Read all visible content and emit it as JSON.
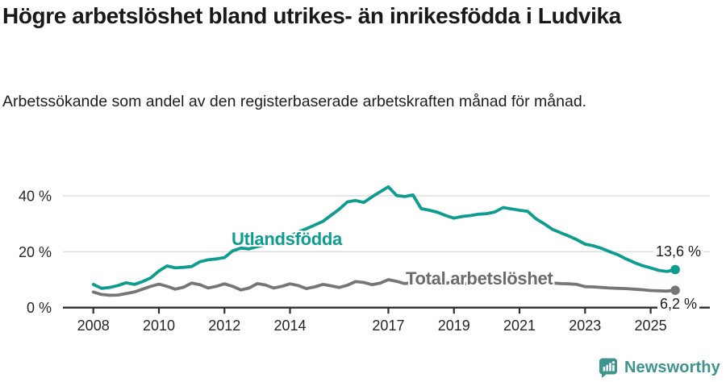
{
  "header": {
    "title": "Högre arbetslöshet bland utrikes- än inrikesfödda i Ludvika",
    "subtitle": "Arbetssökande som andel av den registerbaserade arbetskraften månad för månad."
  },
  "chart_data": {
    "type": "line",
    "title": "Högre arbetslöshet bland utrikes- än inrikesfödda i Ludvika",
    "xlabel": "",
    "ylabel": "Arbetssökande som andel av den registerbaserade arbetskraften (%)",
    "x_start": 2008.0,
    "x_step": 0.25,
    "xlim": [
      2007.8,
      2026.4
    ],
    "ylim": [
      0,
      46
    ],
    "grid": "horizontal",
    "y_ticks": [
      {
        "label": "0 %",
        "value": 0
      },
      {
        "label": "20 %",
        "value": 20
      },
      {
        "label": "40 %",
        "value": 40
      }
    ],
    "x_ticks": [
      {
        "label": "2008",
        "year": 2008
      },
      {
        "label": "2010",
        "year": 2010
      },
      {
        "label": "2012",
        "year": 2012
      },
      {
        "label": "2014",
        "year": 2014
      },
      {
        "label": "2017",
        "year": 2017
      },
      {
        "label": "2019",
        "year": 2019
      },
      {
        "label": "2021",
        "year": 2021
      },
      {
        "label": "2023",
        "year": 2023
      },
      {
        "label": "2025",
        "year": 2025
      }
    ],
    "series": [
      {
        "name": "Utlandsfödda",
        "color": "#0d9c8d",
        "end_label": "13,6 %",
        "end_value": 13.6,
        "values": [
          8.3,
          6.9,
          7.2,
          7.9,
          8.9,
          8.3,
          9.3,
          10.6,
          13.1,
          14.9,
          14.2,
          14.4,
          14.7,
          16.4,
          17.1,
          17.4,
          17.9,
          20.3,
          21.3,
          21.0,
          21.8,
          22.5,
          23.2,
          24.3,
          25.5,
          27.0,
          28.2,
          29.5,
          30.8,
          33.0,
          35.2,
          37.8,
          38.3,
          37.6,
          39.6,
          41.4,
          43.2,
          40.1,
          39.7,
          40.3,
          35.4,
          34.8,
          34.1,
          32.9,
          32.0,
          32.6,
          32.9,
          33.4,
          33.6,
          34.2,
          35.8,
          35.3,
          34.8,
          34.4,
          31.8,
          30.0,
          28.0,
          26.8,
          25.6,
          24.3,
          22.7,
          22.1,
          21.2,
          20.0,
          18.9,
          17.4,
          16.1,
          15.0,
          14.2,
          13.3,
          12.9,
          13.6
        ]
      },
      {
        "name": "Total arbetslöshet",
        "color": "#767676",
        "end_label": "6,2 %",
        "end_value": 6.2,
        "values": [
          5.6,
          4.7,
          4.4,
          4.5,
          5.0,
          5.6,
          6.6,
          7.6,
          8.4,
          7.6,
          6.6,
          7.3,
          8.8,
          8.2,
          7.0,
          7.6,
          8.5,
          7.6,
          6.3,
          7.0,
          8.6,
          8.1,
          7.0,
          7.6,
          8.5,
          7.9,
          6.8,
          7.4,
          8.3,
          7.8,
          7.2,
          8.0,
          9.3,
          9.0,
          8.2,
          8.8,
          10.0,
          9.4,
          8.6,
          9.0,
          9.5,
          9.0,
          8.3,
          8.7,
          9.2,
          8.8,
          8.4,
          8.8,
          9.3,
          9.6,
          9.8,
          9.5,
          9.4,
          9.2,
          8.9,
          8.8,
          8.8,
          8.6,
          8.5,
          8.3,
          7.5,
          7.4,
          7.2,
          7.0,
          6.9,
          6.8,
          6.6,
          6.4,
          6.1,
          6.0,
          5.9,
          6.2
        ]
      }
    ]
  },
  "footer": {
    "brand": "Newsworthy"
  },
  "colors": {
    "accent_teal": "#0d9c8d",
    "logo_teal": "#3e948d",
    "line_gray": "#767676",
    "grid": "#dcdcdc",
    "axis": "#2e2e2e"
  }
}
